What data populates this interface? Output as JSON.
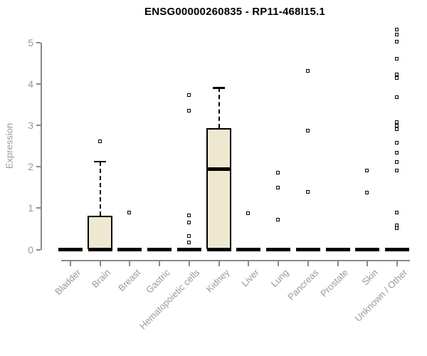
{
  "chart_data": {
    "type": "boxplot",
    "title": "ENSG00000260835 - RP11-468I15.1",
    "ylabel": "Expression",
    "xlabel": "",
    "yticks": [
      0,
      1,
      2,
      3,
      4,
      5
    ],
    "ylim": [
      0,
      5.5
    ],
    "grid": false,
    "legend": false,
    "categories": [
      "Bladder",
      "Brain",
      "Breast",
      "Gastric",
      "Hematopoietic cells",
      "Kidney",
      "Liver",
      "Lung",
      "Pancreas",
      "Prostate",
      "Skin",
      "Unknown / Other"
    ],
    "boxes": [
      {
        "category": "Bladder",
        "min": 0,
        "q1": 0,
        "median": 0,
        "q3": 0,
        "max": 0,
        "outliers": []
      },
      {
        "category": "Brain",
        "min": 0,
        "q1": 0,
        "median": 0,
        "q3": 0.82,
        "max": 2.13,
        "outliers": [
          2.61
        ]
      },
      {
        "category": "Breast",
        "min": 0,
        "q1": 0,
        "median": 0,
        "q3": 0,
        "max": 0,
        "outliers": [
          0.89
        ]
      },
      {
        "category": "Gastric",
        "min": 0,
        "q1": 0,
        "median": 0,
        "q3": 0,
        "max": 0,
        "outliers": []
      },
      {
        "category": "Hematopoietic cells",
        "min": 0,
        "q1": 0,
        "median": 0,
        "q3": 0,
        "max": 0,
        "outliers": [
          3.73,
          3.35,
          0.82,
          0.64,
          0.31,
          0.17
        ]
      },
      {
        "category": "Kidney",
        "min": 0,
        "q1": 0,
        "median": 1.95,
        "q3": 2.93,
        "max": 3.91,
        "outliers": []
      },
      {
        "category": "Liver",
        "min": 0,
        "q1": 0,
        "median": 0,
        "q3": 0,
        "max": 0,
        "outliers": [
          0.87
        ]
      },
      {
        "category": "Lung",
        "min": 0,
        "q1": 0,
        "median": 0,
        "q3": 0,
        "max": 0,
        "outliers": [
          1.85,
          1.49,
          0.71
        ]
      },
      {
        "category": "Pancreas",
        "min": 0,
        "q1": 0,
        "median": 0,
        "q3": 0,
        "max": 0,
        "outliers": [
          4.31,
          2.87,
          1.39
        ]
      },
      {
        "category": "Prostate",
        "min": 0,
        "q1": 0,
        "median": 0,
        "q3": 0,
        "max": 0,
        "outliers": []
      },
      {
        "category": "Skin",
        "min": 0,
        "q1": 0,
        "median": 0,
        "q3": 0,
        "max": 0,
        "outliers": [
          1.9,
          1.37
        ]
      },
      {
        "category": "Unknown / Other",
        "min": 0,
        "q1": 0,
        "median": 0,
        "q3": 0,
        "max": 0,
        "outliers": [
          5.31,
          5.19,
          5.02,
          4.61,
          4.22,
          4.14,
          3.67,
          3.07,
          2.98,
          2.9,
          2.58,
          2.34,
          2.11,
          1.9,
          0.88,
          0.58,
          0.5
        ]
      }
    ],
    "colors": {
      "box_fill": "#ede8cf",
      "box_border": "#000000",
      "axis": "#8a8a8a",
      "axis_text": "#999999",
      "title_text": "#000000"
    }
  }
}
